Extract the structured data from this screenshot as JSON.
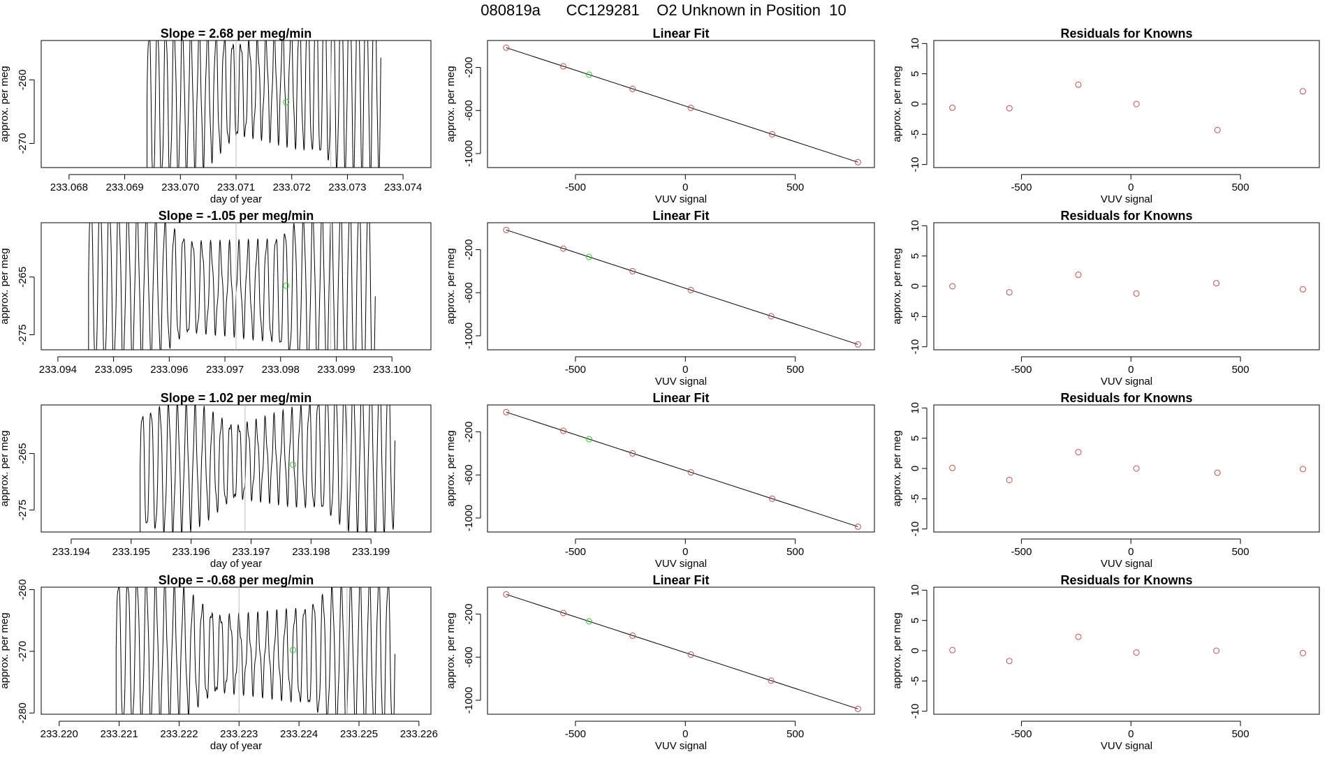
{
  "page_title": "080819a      CC129281    O2 Unknown in Position  10",
  "colors": {
    "trace": "#000000",
    "known": "#c0504d",
    "unknown": "#33cc33",
    "marker": "#bbbbbb",
    "axis": "#000000"
  },
  "chart_data": [
    {
      "type": "line",
      "title": "Slope =  2.68  per meg/min",
      "xlabel": "day of year",
      "ylabel": "approx. per meg",
      "xlim": [
        233.0675,
        233.0745
      ],
      "ylim": [
        -273.8,
        -253.8
      ],
      "x_ticks": [
        "233.068",
        "233.069",
        "233.070",
        "233.071",
        "233.072",
        "233.073",
        "233.074"
      ],
      "x_tick_values": [
        233.068,
        233.069,
        233.07,
        233.071,
        233.072,
        233.073,
        233.074
      ],
      "y_ticks": [
        "-260",
        "-270"
      ],
      "y_tick_values": [
        -260,
        -270
      ],
      "trace": {
        "x_start": 233.0694,
        "x_end": 233.0736,
        "base": -264,
        "amp": 10,
        "growth": 5,
        "drift": 6,
        "osc": 28
      },
      "marker_lines": [
        233.071,
        233.0727
      ],
      "unknown_point": {
        "x": 233.0719,
        "y": -263.5
      }
    },
    {
      "type": "scatter",
      "title": "Linear Fit",
      "xlabel": "VUV signal",
      "ylabel": "approx. per meg",
      "xlim": [
        -900,
        860
      ],
      "ylim": [
        -1130,
        50
      ],
      "x_ticks": [
        "-500",
        "0",
        "500"
      ],
      "x_tick_values": [
        -500,
        0,
        500
      ],
      "y_ticks": [
        "-200",
        "-600",
        "-1000"
      ],
      "y_tick_values": [
        -200,
        -600,
        -1000
      ],
      "fit_line": {
        "x": [
          -815,
          785
        ],
        "y": [
          -17,
          -1080
        ]
      },
      "known_x": [
        -815,
        -555,
        -240,
        25,
        395,
        785
      ],
      "known_y": [
        -17,
        -190,
        -400,
        -576,
        -821,
        -1080
      ],
      "unknown": {
        "x": -438,
        "y": -268
      }
    },
    {
      "type": "scatter",
      "title": "Residuals for Knowns",
      "xlabel": "VUV signal",
      "ylabel": "approx. per meg",
      "xlim": [
        -900,
        860
      ],
      "ylim": [
        -10.5,
        10.5
      ],
      "x_ticks": [
        "-500",
        "0",
        "500"
      ],
      "x_tick_values": [
        -500,
        0,
        500
      ],
      "y_ticks": [
        "-10",
        "-5",
        "0",
        "5",
        "10"
      ],
      "y_tick_values": [
        -10,
        -5,
        0,
        5,
        10
      ],
      "x": [
        -815,
        -555,
        -240,
        25,
        395,
        785
      ],
      "y": [
        -0.6,
        -0.7,
        3.2,
        0.0,
        -4.3,
        2.1
      ]
    },
    {
      "type": "line",
      "title": "Slope =  -1.05  per meg/min",
      "xlabel": "",
      "ylabel": "approx. per meg",
      "xlim": [
        233.0937,
        233.1007
      ],
      "ylim": [
        -277.6,
        -255.6
      ],
      "x_ticks": [
        "233.094",
        "233.095",
        "233.096",
        "233.097",
        "233.098",
        "233.099",
        "233.100"
      ],
      "x_tick_values": [
        233.094,
        233.095,
        233.096,
        233.097,
        233.098,
        233.099,
        233.1
      ],
      "y_ticks": [
        "-265",
        "-275"
      ],
      "y_tick_values": [
        -265,
        -275
      ],
      "trace": {
        "x_start": 233.09455,
        "x_end": 233.0997,
        "base": -266,
        "amp": 12,
        "growth": 2,
        "drift": -2,
        "osc": 31
      },
      "marker_lines": [
        233.0972,
        233.0989
      ],
      "unknown_point": {
        "x": 233.0981,
        "y": -266.5
      }
    },
    {
      "type": "scatter",
      "title": "Linear Fit",
      "xlabel": "VUV signal",
      "ylabel": "approx. per meg",
      "xlim": [
        -900,
        860
      ],
      "ylim": [
        -1130,
        50
      ],
      "x_ticks": [
        "-500",
        "0",
        "500"
      ],
      "x_tick_values": [
        -500,
        0,
        500
      ],
      "y_ticks": [
        "-200",
        "-600",
        "-1000"
      ],
      "y_tick_values": [
        -200,
        -600,
        -1000
      ],
      "fit_line": {
        "x": [
          -815,
          785
        ],
        "y": [
          -17,
          -1080
        ]
      },
      "known_x": [
        -815,
        -555,
        -240,
        25,
        390,
        785
      ],
      "known_y": [
        -17,
        -190,
        -400,
        -576,
        -818,
        -1080
      ],
      "unknown": {
        "x": -438,
        "y": -268
      }
    },
    {
      "type": "scatter",
      "title": "Residuals for Knowns",
      "xlabel": "VUV signal",
      "ylabel": "approx. per meg",
      "xlim": [
        -900,
        860
      ],
      "ylim": [
        -10.5,
        10.5
      ],
      "x_ticks": [
        "-500",
        "0",
        "500"
      ],
      "x_tick_values": [
        -500,
        0,
        500
      ],
      "y_ticks": [
        "-10",
        "-5",
        "0",
        "5",
        "10"
      ],
      "y_tick_values": [
        -10,
        -5,
        0,
        5,
        10
      ],
      "x": [
        -815,
        -555,
        -240,
        25,
        390,
        785
      ],
      "y": [
        0.0,
        -1.0,
        1.9,
        -1.2,
        0.5,
        -0.5
      ]
    },
    {
      "type": "line",
      "title": "Slope =  1.02  per meg/min",
      "xlabel": "day of year",
      "ylabel": "approx. per meg",
      "xlim": [
        233.1935,
        233.2
      ],
      "ylim": [
        -278.9,
        -256.4
      ],
      "x_ticks": [
        "233.194",
        "233.195",
        "233.196",
        "233.197",
        "233.198",
        "233.199"
      ],
      "x_tick_values": [
        233.194,
        233.195,
        233.196,
        233.197,
        233.198,
        233.199
      ],
      "y_ticks": [
        "-265",
        "-275"
      ],
      "y_tick_values": [
        -265,
        -275
      ],
      "trace": {
        "x_start": 233.19515,
        "x_end": 233.1994,
        "base": -268,
        "amp": 9,
        "growth": 4,
        "drift": 4,
        "osc": 29
      },
      "marker_lines": [
        233.1969,
        233.1986
      ],
      "unknown_point": {
        "x": 233.1977,
        "y": -267.0
      }
    },
    {
      "type": "scatter",
      "title": "Linear Fit",
      "xlabel": "VUV signal",
      "ylabel": "approx. per meg",
      "xlim": [
        -900,
        860
      ],
      "ylim": [
        -1130,
        50
      ],
      "x_ticks": [
        "-500",
        "0",
        "500"
      ],
      "x_tick_values": [
        -500,
        0,
        500
      ],
      "y_ticks": [
        "-200",
        "-600",
        "-1000"
      ],
      "y_tick_values": [
        -200,
        -600,
        -1000
      ],
      "fit_line": {
        "x": [
          -815,
          785
        ],
        "y": [
          -17,
          -1080
        ]
      },
      "known_x": [
        -815,
        -555,
        -240,
        25,
        395,
        785
      ],
      "known_y": [
        -17,
        -190,
        -400,
        -576,
        -821,
        -1080
      ],
      "unknown": {
        "x": -438,
        "y": -268
      }
    },
    {
      "type": "scatter",
      "title": "Residuals for Knowns",
      "xlabel": "VUV signal",
      "ylabel": "approx. per meg",
      "xlim": [
        -900,
        860
      ],
      "ylim": [
        -10.5,
        10.5
      ],
      "x_ticks": [
        "-500",
        "0",
        "500"
      ],
      "x_tick_values": [
        -500,
        0,
        500
      ],
      "y_ticks": [
        "-10",
        "-5",
        "0",
        "5",
        "10"
      ],
      "y_tick_values": [
        -10,
        -5,
        0,
        5,
        10
      ],
      "x": [
        -815,
        -555,
        -240,
        25,
        395,
        785
      ],
      "y": [
        0.1,
        -1.9,
        2.7,
        0.0,
        -0.7,
        -0.1
      ]
    },
    {
      "type": "line",
      "title": "Slope =  -0.68  per meg/min",
      "xlabel": "day of year",
      "ylabel": "approx. per meg",
      "xlim": [
        233.2197,
        233.2262
      ],
      "ylim": [
        -280.2,
        -259.6
      ],
      "x_ticks": [
        "233.220",
        "233.221",
        "233.222",
        "233.223",
        "233.224",
        "233.225",
        "233.226"
      ],
      "x_tick_values": [
        233.22,
        233.221,
        233.222,
        233.223,
        233.224,
        233.225,
        233.226
      ],
      "y_ticks": [
        "-260",
        "-270",
        "-280"
      ],
      "y_tick_values": [
        -260,
        -270,
        -280
      ],
      "trace": {
        "x_start": 233.22095,
        "x_end": 233.2256,
        "base": -270,
        "amp": 10,
        "growth": 1,
        "drift": -1,
        "osc": 30
      },
      "marker_lines": [
        233.223,
        233.2248
      ],
      "unknown_point": {
        "x": 233.2239,
        "y": -269.8
      }
    },
    {
      "type": "scatter",
      "title": "Linear Fit",
      "xlabel": "VUV signal",
      "ylabel": "approx. per meg",
      "xlim": [
        -900,
        860
      ],
      "ylim": [
        -1130,
        50
      ],
      "x_ticks": [
        "-500",
        "0",
        "500"
      ],
      "x_tick_values": [
        -500,
        0,
        500
      ],
      "y_ticks": [
        "-200",
        "-600",
        "-1000"
      ],
      "y_tick_values": [
        -200,
        -600,
        -1000
      ],
      "fit_line": {
        "x": [
          -815,
          785
        ],
        "y": [
          -17,
          -1080
        ]
      },
      "known_x": [
        -815,
        -555,
        -240,
        25,
        390,
        785
      ],
      "known_y": [
        -17,
        -190,
        -400,
        -576,
        -818,
        -1080
      ],
      "unknown": {
        "x": -438,
        "y": -268
      }
    },
    {
      "type": "scatter",
      "title": "Residuals for Knowns",
      "xlabel": "VUV signal",
      "ylabel": "approx. per meg",
      "xlim": [
        -900,
        860
      ],
      "ylim": [
        -10.5,
        10.5
      ],
      "x_ticks": [
        "-500",
        "0",
        "500"
      ],
      "x_tick_values": [
        -500,
        0,
        500
      ],
      "y_ticks": [
        "-10",
        "-5",
        "0",
        "5",
        "10"
      ],
      "y_tick_values": [
        -10,
        -5,
        0,
        5,
        10
      ],
      "x": [
        -815,
        -555,
        -240,
        25,
        390,
        785
      ],
      "y": [
        0.1,
        -1.7,
        2.3,
        -0.3,
        0.0,
        -0.4
      ]
    }
  ]
}
